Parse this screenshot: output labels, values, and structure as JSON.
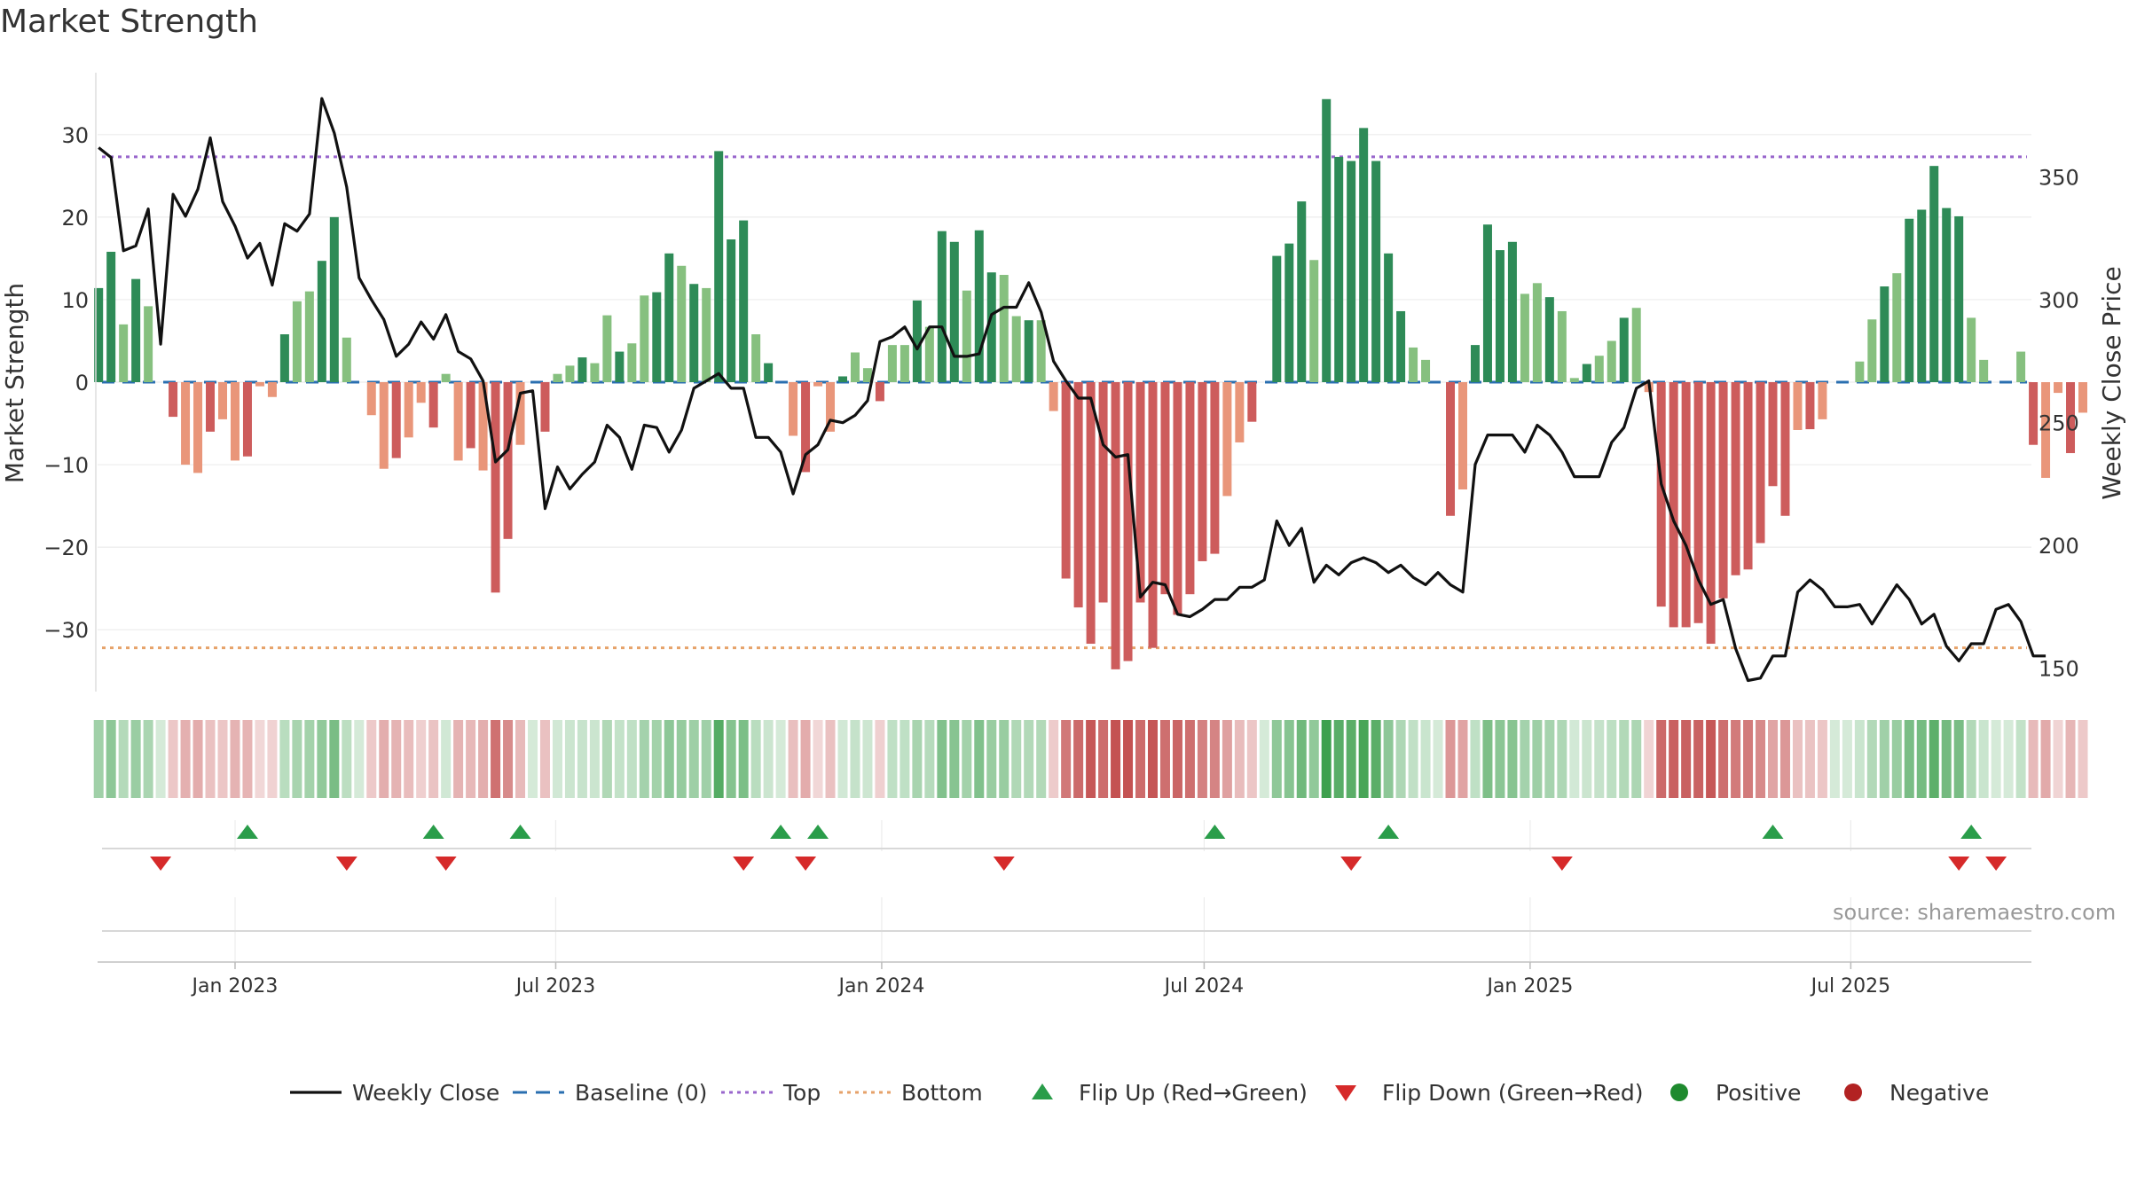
{
  "title": "Market Strength",
  "source": "source: sharemaestro.com",
  "chart_data": {
    "type": "bar",
    "title": "Market Strength",
    "x_start": "2022-10-16",
    "x_step_days": 7,
    "x_tick_labels": [
      "Jan 2023",
      "Jul 2023",
      "Jan 2024",
      "Jul 2024",
      "Jan 2025",
      "Jul 2025"
    ],
    "x_tick_dates": [
      "2023-01-01",
      "2023-07-01",
      "2024-01-01",
      "2024-07-01",
      "2025-01-01",
      "2025-07-01"
    ],
    "y_left": {
      "label": "Market Strength",
      "range": [
        -37.5,
        37.5
      ],
      "ticks": [
        30,
        20,
        10,
        0,
        -10,
        -20,
        -30
      ],
      "tick_labels": [
        "30",
        "20",
        "10",
        "0",
        "−10",
        "−20",
        "−30"
      ]
    },
    "y_right": {
      "label": "Weekly Close Price",
      "range": [
        140.5,
        392.5
      ],
      "ticks": [
        350,
        300,
        250,
        200,
        150
      ],
      "tick_labels": [
        "350",
        "300",
        "250",
        "200",
        "150"
      ]
    },
    "top_level": 27.3,
    "bottom_level": -32.2,
    "baseline": 0,
    "strength": [
      11.4,
      15.8,
      7.0,
      12.5,
      9.2,
      0,
      -4.2,
      -10.0,
      -11.0,
      -6.0,
      -4.5,
      -9.5,
      -9.0,
      -0.5,
      -1.8,
      5.8,
      9.8,
      11.0,
      14.7,
      20.0,
      5.4,
      0,
      -4.0,
      -10.5,
      -9.2,
      -6.7,
      -2.5,
      -5.5,
      1.0,
      -9.5,
      -8.0,
      -10.7,
      -25.5,
      -19.0,
      -7.6,
      0,
      -6.0,
      1.0,
      2.0,
      3.0,
      2.3,
      8.1,
      3.7,
      4.7,
      10.5,
      10.9,
      15.6,
      14.1,
      11.9,
      11.4,
      28.0,
      17.3,
      19.6,
      5.8,
      2.3,
      0,
      -6.5,
      -10.9,
      -0.5,
      -6.0,
      0.7,
      3.6,
      1.7,
      -2.3,
      4.5,
      4.5,
      9.9,
      6.7,
      18.3,
      17.0,
      11.1,
      18.4,
      13.3,
      13.0,
      8.0,
      7.5,
      7.5,
      -3.5,
      -23.8,
      -27.3,
      -31.7,
      -26.7,
      -34.8,
      -33.8,
      -26.7,
      -32.2,
      -25.7,
      -28.2,
      -25.7,
      -21.7,
      -20.8,
      -13.8,
      -7.3,
      -4.8,
      0,
      15.3,
      16.8,
      21.9,
      14.8,
      34.3,
      27.3,
      26.8,
      30.8,
      26.8,
      15.6,
      8.6,
      4.2,
      2.7,
      0,
      -16.2,
      -13.0,
      4.5,
      19.1,
      16.0,
      17.0,
      10.7,
      12.0,
      10.3,
      8.6,
      0.5,
      2.2,
      3.2,
      5.0,
      7.8,
      9.0,
      -1.2,
      -27.2,
      -29.7,
      -29.7,
      -29.2,
      -31.7,
      -26.2,
      -23.4,
      -22.7,
      -19.5,
      -12.6,
      -16.2,
      -5.8,
      -5.7,
      -4.5,
      0,
      0,
      2.5,
      7.6,
      11.6,
      13.2,
      19.8,
      20.9,
      26.2,
      21.1,
      20.1,
      7.8,
      2.7,
      0,
      0,
      3.7,
      -7.6,
      -11.6,
      -1.3,
      -8.6,
      -3.7
    ],
    "close": [
      362,
      358,
      320,
      322,
      337,
      282,
      343,
      334,
      345,
      366,
      340,
      330,
      317,
      323,
      306,
      331,
      328,
      335,
      382,
      368,
      346,
      309,
      300,
      292,
      277,
      282,
      291,
      284,
      294,
      279,
      276,
      267,
      234,
      239,
      262,
      263,
      215,
      232,
      223,
      229,
      234,
      249,
      244,
      231,
      249,
      248,
      238,
      247,
      264,
      267,
      270,
      264,
      264,
      244,
      244,
      238,
      221,
      237,
      241,
      251,
      250,
      253,
      259,
      283,
      285,
      289,
      280,
      289,
      289,
      277,
      277,
      278,
      294,
      297,
      297,
      307,
      295,
      275,
      267,
      260,
      260,
      241,
      236,
      237,
      179,
      185,
      184,
      172,
      171,
      174,
      178,
      178,
      183,
      183,
      186,
      210,
      200,
      207,
      185,
      192,
      188,
      193,
      195,
      193,
      189,
      192,
      187,
      184,
      189,
      184,
      181,
      233,
      245,
      245,
      245,
      238,
      249,
      245,
      238,
      228,
      228,
      228,
      242,
      248,
      264,
      267,
      225,
      210,
      200,
      186,
      176,
      178,
      158,
      145,
      146,
      155,
      155,
      181,
      186,
      182,
      175,
      175,
      176,
      168,
      176,
      184,
      178,
      168,
      172,
      159,
      153,
      160,
      160,
      174,
      176,
      169,
      155,
      155
    ]
  },
  "indicators": {
    "flip_up_dates": [
      "2023-01-08",
      "2023-04-23",
      "2023-06-11",
      "2023-11-05",
      "2023-11-26",
      "2024-07-07",
      "2024-10-13",
      "2025-05-18",
      "2025-09-07"
    ],
    "flip_down_dates": [
      "2022-11-20",
      "2023-03-05",
      "2023-04-30",
      "2023-10-15",
      "2023-11-19",
      "2024-03-10",
      "2024-09-22",
      "2025-01-19",
      "2025-08-31",
      "2025-09-21"
    ]
  },
  "legend": [
    {
      "label": "Weekly Close",
      "symbol": "line",
      "color": "#111111"
    },
    {
      "label": "Baseline (0)",
      "symbol": "dash",
      "color": "#2a6fb0"
    },
    {
      "label": "Top",
      "symbol": "dot",
      "color": "#9966cc"
    },
    {
      "label": "Bottom",
      "symbol": "dot",
      "color": "#e6a26a"
    },
    {
      "label": "Flip Up (Red→Green)",
      "symbol": "triangle-up",
      "color": "#2a9d4a"
    },
    {
      "label": "Flip Down (Green→Red)",
      "symbol": "triangle-down",
      "color": "#d62a2a"
    },
    {
      "label": "Positive",
      "symbol": "circle",
      "color": "#1e8a2e"
    },
    {
      "label": "Negative",
      "symbol": "circle",
      "color": "#b22222"
    }
  ],
  "colors": {
    "pos_dark": "#2e8b57",
    "pos_light": "#86c07f",
    "neg_dark": "#cd5c5c",
    "neg_light": "#e9967a",
    "close_line": "#111111",
    "baseline": "#2a6fb0",
    "top": "#9966cc",
    "bottom": "#e6a26a",
    "flip_up": "#2a9d4a",
    "flip_down": "#d62a2a"
  }
}
